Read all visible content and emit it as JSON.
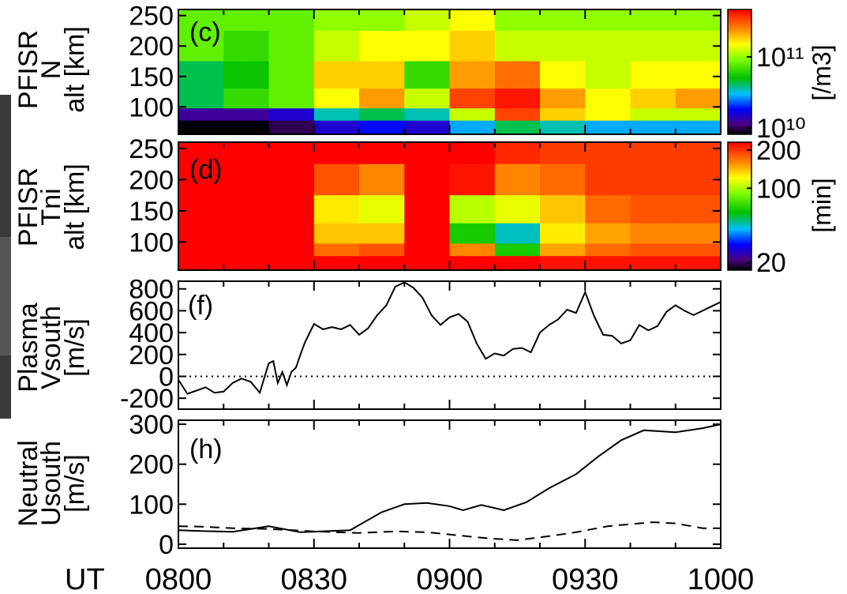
{
  "figure": {
    "time_axis_prefix": "UT",
    "time_ticks": [
      "0800",
      "0830",
      "0900",
      "0930",
      "1000"
    ],
    "time_range_min": [
      0,
      120
    ]
  },
  "chart_data": [
    {
      "panel": "(c)",
      "type": "heatmap",
      "ylabel": [
        "PFISR",
        "N",
        "alt [km]"
      ],
      "ylim": [
        55,
        260
      ],
      "yticks": [
        100,
        150,
        200,
        250
      ],
      "colorbar": {
        "scale": "log",
        "label": "[/m3]",
        "ticks": [
          "10¹¹",
          "10¹⁰"
        ],
        "tick_values": [
          100000000000.0,
          10000000000.0
        ],
        "colormap": "rainbow"
      },
      "description_levels": "log10 electron density; low (blue/black) below ~90 km before 0900, high (red/yellow) 90-150 km after 0900",
      "time_blocks_min": [
        0,
        10,
        20,
        30,
        40,
        50,
        60,
        70,
        80,
        90,
        100,
        110
      ],
      "altitude_bands_km": [
        250,
        200,
        150,
        110,
        85,
        70
      ],
      "values_log10": [
        [
          10.7,
          10.7,
          10.7,
          10.8,
          10.8,
          10.9,
          11.0,
          10.8,
          10.8,
          10.8,
          10.8,
          10.8
        ],
        [
          10.7,
          10.6,
          10.7,
          10.9,
          11.0,
          11.0,
          11.1,
          10.9,
          10.9,
          10.9,
          10.9,
          10.9
        ],
        [
          10.4,
          10.5,
          10.7,
          11.1,
          11.1,
          10.6,
          11.2,
          11.3,
          11.0,
          10.9,
          11.0,
          11.0
        ],
        [
          10.4,
          10.6,
          10.7,
          11.0,
          11.2,
          10.9,
          11.4,
          11.5,
          11.2,
          11.0,
          11.1,
          11.2
        ],
        [
          9.8,
          9.8,
          9.9,
          10.3,
          10.4,
          10.3,
          10.9,
          11.4,
          11.1,
          11.0,
          10.9,
          10.9
        ],
        [
          9.6,
          9.6,
          9.7,
          9.9,
          10.0,
          9.9,
          10.2,
          10.4,
          10.3,
          10.2,
          10.2,
          10.2
        ]
      ]
    },
    {
      "panel": "(d)",
      "type": "heatmap",
      "ylabel": [
        "PFISR",
        "Tni",
        "alt [km]"
      ],
      "ylim": [
        55,
        260
      ],
      "yticks": [
        100,
        150,
        200,
        250
      ],
      "colorbar": {
        "scale": "log",
        "label": "[min]",
        "ticks": [
          "200",
          "100",
          "20"
        ],
        "tick_values": [
          200,
          100,
          20
        ],
        "colormap": "rainbow"
      },
      "time_blocks_min": [
        0,
        10,
        20,
        30,
        40,
        50,
        60,
        70,
        80,
        90,
        100,
        110
      ],
      "altitude_bands_km": [
        250,
        200,
        150,
        110,
        85,
        70
      ],
      "values_min": [
        [
          200,
          200,
          200,
          200,
          200,
          200,
          200,
          180,
          170,
          170,
          170,
          170
        ],
        [
          200,
          200,
          200,
          160,
          140,
          200,
          190,
          140,
          150,
          170,
          170,
          170
        ],
        [
          200,
          200,
          200,
          110,
          100,
          200,
          90,
          100,
          120,
          150,
          160,
          160
        ],
        [
          200,
          200,
          200,
          120,
          120,
          200,
          60,
          45,
          110,
          130,
          140,
          140
        ],
        [
          200,
          200,
          200,
          150,
          160,
          200,
          140,
          60,
          130,
          150,
          160,
          160
        ],
        [
          200,
          200,
          200,
          200,
          200,
          200,
          200,
          200,
          190,
          190,
          190,
          190
        ]
      ]
    },
    {
      "panel": "(f)",
      "type": "line",
      "ylabel": [
        "Plasma",
        "Vsouth",
        "[m/s]"
      ],
      "ylim": [
        -300,
        870
      ],
      "yticks": [
        "800",
        "600",
        "400",
        "200",
        "0",
        "-200"
      ],
      "ytick_values": [
        800,
        600,
        400,
        200,
        0,
        -200
      ],
      "zero_line": "dotted",
      "series": [
        {
          "style": "solid",
          "x_min": [
            0,
            2,
            4,
            6,
            8,
            10,
            12,
            14,
            16,
            18,
            20,
            21,
            22,
            23,
            24,
            25,
            26,
            27,
            28,
            30,
            32,
            34,
            36,
            38,
            40,
            42,
            44,
            46,
            48,
            50,
            52,
            54,
            56,
            58,
            60,
            62,
            64,
            66,
            68,
            70,
            72,
            74,
            76,
            78,
            80,
            82,
            84,
            86,
            88,
            90,
            92,
            94,
            96,
            98,
            100,
            102,
            104,
            106,
            108,
            110,
            112,
            114,
            116,
            118,
            120
          ],
          "y": [
            -30,
            -160,
            -130,
            -100,
            -150,
            -140,
            -60,
            -20,
            -50,
            -150,
            120,
            140,
            -60,
            40,
            -80,
            40,
            80,
            200,
            310,
            480,
            430,
            450,
            430,
            470,
            380,
            440,
            560,
            650,
            820,
            860,
            810,
            720,
            560,
            470,
            540,
            570,
            500,
            300,
            160,
            210,
            190,
            250,
            260,
            220,
            400,
            470,
            520,
            610,
            580,
            770,
            550,
            380,
            370,
            300,
            330,
            470,
            420,
            460,
            590,
            650,
            600,
            560,
            600,
            640,
            680
          ]
        }
      ]
    },
    {
      "panel": "(h)",
      "type": "line",
      "ylabel": [
        "Neutral",
        "Usouth",
        "[m/s]"
      ],
      "ylim": [
        -10,
        310
      ],
      "yticks": [
        "300",
        "200",
        "100",
        "0"
      ],
      "ytick_values": [
        300,
        200,
        100,
        0
      ],
      "series": [
        {
          "style": "solid",
          "x_min": [
            0,
            5,
            12,
            20,
            27,
            38,
            45,
            50,
            55,
            60,
            63,
            67,
            72,
            77,
            82,
            88,
            93,
            98,
            103,
            110,
            116,
            120
          ],
          "y": [
            35,
            33,
            31,
            45,
            30,
            35,
            80,
            100,
            103,
            95,
            85,
            98,
            85,
            105,
            140,
            175,
            220,
            260,
            285,
            280,
            290,
            300
          ]
        },
        {
          "style": "dashed",
          "x_min": [
            0,
            5,
            12,
            20,
            30,
            40,
            48,
            55,
            62,
            68,
            75,
            82,
            88,
            95,
            100,
            105,
            110,
            116,
            120
          ],
          "y": [
            45,
            44,
            40,
            38,
            32,
            28,
            32,
            30,
            22,
            15,
            10,
            20,
            30,
            45,
            50,
            55,
            52,
            40,
            40
          ]
        }
      ]
    }
  ]
}
